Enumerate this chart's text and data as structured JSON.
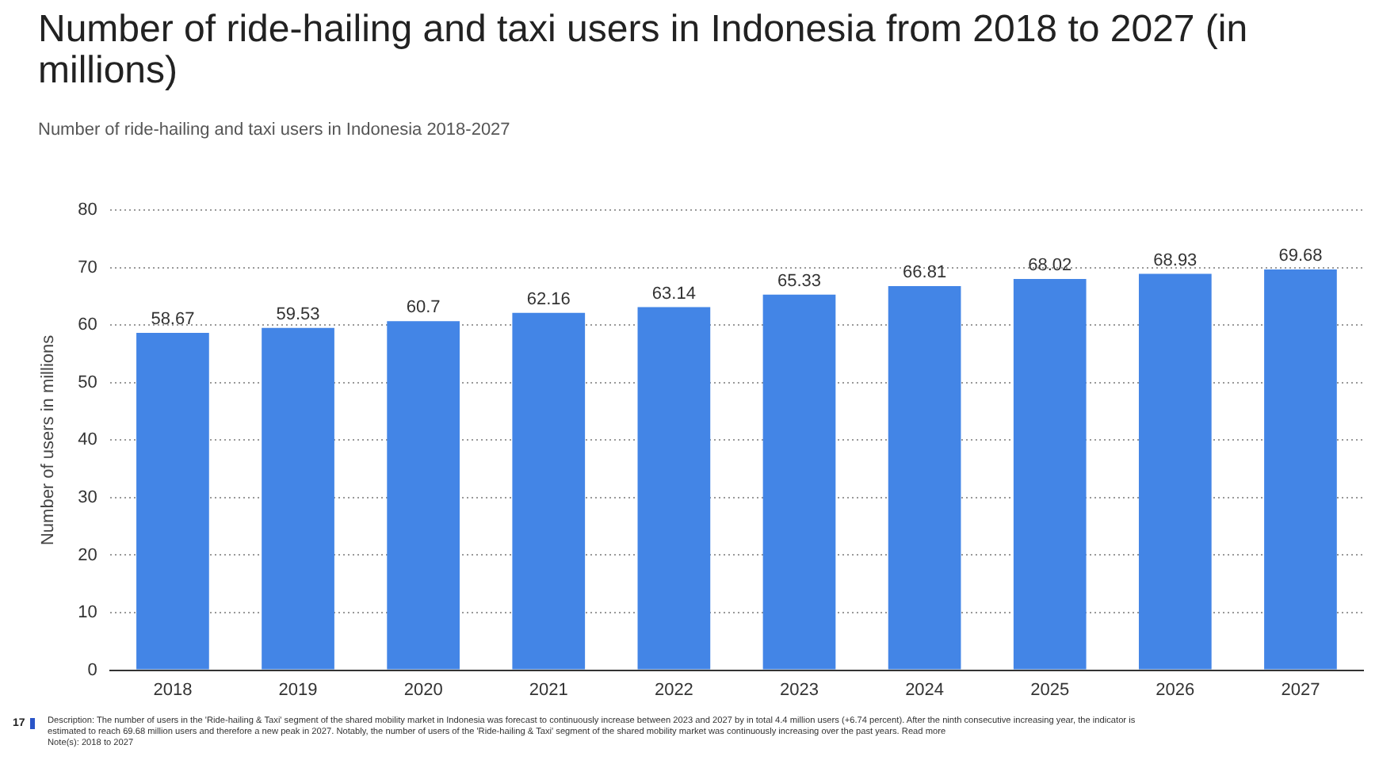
{
  "chart_data": {
    "type": "bar",
    "title": "Number of ride-hailing and taxi users in Indonesia from 2018 to 2027 (in millions)",
    "subtitle": "Number of ride-hailing and taxi users in Indonesia 2018-2027",
    "ylabel": "Number of users in millions",
    "categories": [
      "2018",
      "2019",
      "2020",
      "2021",
      "2022",
      "2023",
      "2024",
      "2025",
      "2026",
      "2027"
    ],
    "values": [
      58.67,
      59.53,
      60.7,
      62.16,
      63.14,
      65.33,
      66.81,
      68.02,
      68.93,
      69.68
    ],
    "color": "#4385e6",
    "ylim": [
      0,
      80
    ],
    "yticks": [
      0,
      10,
      20,
      30,
      40,
      50,
      60,
      70,
      80
    ],
    "grid": "y",
    "data_labels": true,
    "legend": false,
    "annotations": [
      "17",
      "Description: The number of users in the 'Ride-hailing & Taxi' segment of the shared mobility market in Indonesia was forecast to continuously increase between 2023 and 2027 by in total 4.4 million users (+6.74 percent). After the ninth consecutive increasing year, the indicator is estimated to reach 69.68 million users and therefore a new peak in 2027. Notably, the number of users of the 'Ride-hailing & Taxi' segment of the shared mobility market was continuously increasing over the past years. Read more",
      "Note(s): 2018 to 2027"
    ]
  }
}
